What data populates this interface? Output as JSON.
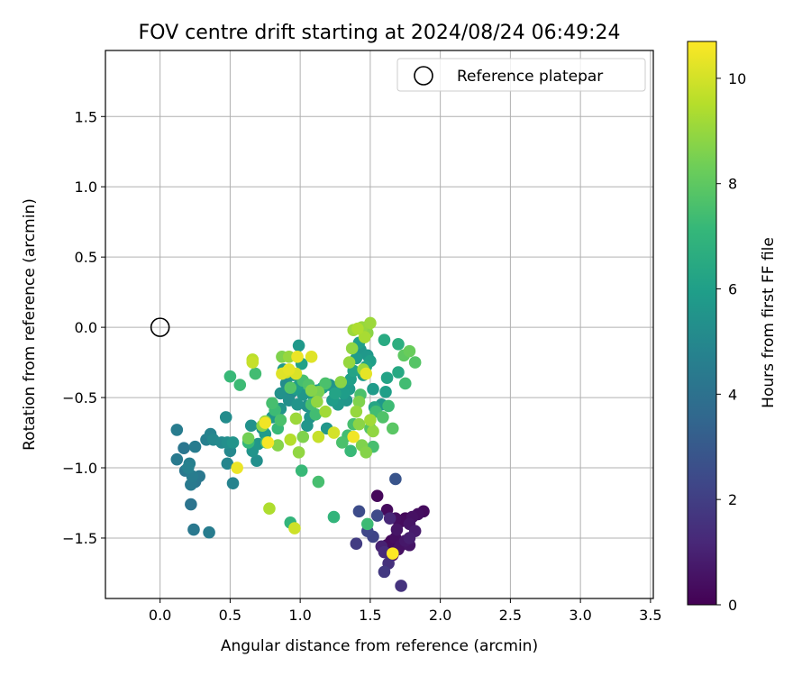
{
  "chart_data": {
    "type": "scatter",
    "title": "FOV centre drift starting at 2024/08/24 06:49:24",
    "xlabel": "Angular distance from reference (arcmin)",
    "ylabel": "Rotation from reference (arcmin)",
    "xlim": [
      -0.39,
      3.52
    ],
    "ylim": [
      -1.93,
      1.97
    ],
    "xticks": [
      0.0,
      0.5,
      1.0,
      1.5,
      2.0,
      2.5,
      3.0,
      3.5
    ],
    "xtick_labels": [
      "0.0",
      "0.5",
      "1.0",
      "1.5",
      "2.0",
      "2.5",
      "3.0",
      "3.5"
    ],
    "yticks": [
      -1.5,
      -1.0,
      -0.5,
      0.0,
      0.5,
      1.0,
      1.5
    ],
    "ytick_labels": [
      "−1.5",
      "−1.0",
      "−0.5",
      "0.0",
      "0.5",
      "1.0",
      "1.5"
    ],
    "grid": true,
    "legend": {
      "placement": "top-right",
      "entries": [
        "Reference platepar"
      ]
    },
    "reference_point": {
      "x": 0.0,
      "y": 0.0
    },
    "colorbar": {
      "label": "Hours from first FF file",
      "colormap": "viridis",
      "range": [
        0,
        10.7
      ],
      "ticks": [
        0,
        2,
        4,
        6,
        8,
        10
      ],
      "tick_labels": [
        "0",
        "2",
        "4",
        "6",
        "8",
        "10"
      ]
    },
    "colormap_stops": [
      "#440154",
      "#482878",
      "#3e4989",
      "#31688e",
      "#26828e",
      "#1f9e89",
      "#35b779",
      "#6ece58",
      "#b5de2b",
      "#fde725"
    ],
    "series": [
      {
        "points": [
          [
            1.55,
            -1.2,
            0.2
          ],
          [
            1.62,
            -1.3,
            0.3
          ],
          [
            1.68,
            -1.36,
            0.4
          ],
          [
            1.72,
            -1.38,
            0.3
          ],
          [
            1.75,
            -1.36,
            0.2
          ],
          [
            1.8,
            -1.35,
            0.5
          ],
          [
            1.84,
            -1.33,
            0.4
          ],
          [
            1.88,
            -1.31,
            0.3
          ],
          [
            1.78,
            -1.4,
            0.6
          ],
          [
            1.82,
            -1.45,
            0.8
          ],
          [
            1.78,
            -1.5,
            0.9
          ],
          [
            1.75,
            -1.52,
            0.7
          ],
          [
            1.78,
            -1.55,
            0.6
          ],
          [
            1.72,
            -1.55,
            0.5
          ],
          [
            1.68,
            -1.5,
            0.4
          ],
          [
            1.65,
            -1.52,
            0.2
          ],
          [
            1.62,
            -1.55,
            0.3
          ],
          [
            1.7,
            -1.58,
            0.5
          ],
          [
            1.66,
            -1.62,
            0.1
          ],
          [
            1.69,
            -1.44,
            0.6
          ],
          [
            1.58,
            -1.56,
            1.0
          ],
          [
            1.6,
            -1.6,
            1.3
          ],
          [
            1.63,
            -1.68,
            1.5
          ],
          [
            1.6,
            -1.74,
            1.8
          ],
          [
            1.72,
            -1.84,
            1.6
          ],
          [
            1.4,
            -1.54,
            1.9
          ],
          [
            1.52,
            -1.49,
            2.2
          ],
          [
            1.48,
            -1.45,
            2.3
          ],
          [
            1.55,
            -1.34,
            2.4
          ],
          [
            1.42,
            -1.31,
            2.5
          ],
          [
            1.68,
            -1.08,
            2.8
          ],
          [
            1.64,
            -1.36,
            1.2
          ],
          [
            0.12,
            -0.73,
            4.5
          ],
          [
            0.12,
            -0.94,
            4.4
          ],
          [
            0.17,
            -0.86,
            4.2
          ],
          [
            0.18,
            -1.02,
            4.3
          ],
          [
            0.21,
            -0.97,
            4.6
          ],
          [
            0.23,
            -1.06,
            4.5
          ],
          [
            0.22,
            -1.12,
            4.4
          ],
          [
            0.25,
            -1.1,
            4.2
          ],
          [
            0.28,
            -1.06,
            4.3
          ],
          [
            0.2,
            -1.0,
            4.7
          ],
          [
            0.25,
            -0.85,
            4.5
          ],
          [
            0.22,
            -1.26,
            4.1
          ],
          [
            0.24,
            -1.44,
            4.3
          ],
          [
            0.35,
            -1.46,
            4.5
          ],
          [
            0.33,
            -0.8,
            4.6
          ],
          [
            0.36,
            -0.76,
            4.8
          ],
          [
            0.38,
            -0.8,
            5.0
          ],
          [
            0.44,
            -0.82,
            5.1
          ],
          [
            0.47,
            -0.64,
            5.2
          ],
          [
            0.48,
            -0.82,
            5.3
          ],
          [
            0.5,
            -0.88,
            5.0
          ],
          [
            0.48,
            -0.97,
            4.9
          ],
          [
            0.52,
            -1.11,
            4.8
          ],
          [
            0.52,
            -0.82,
            5.5
          ],
          [
            0.65,
            -0.7,
            5.4
          ],
          [
            0.66,
            -0.88,
            5.5
          ],
          [
            0.69,
            -0.95,
            5.3
          ],
          [
            0.7,
            -0.83,
            5.6
          ],
          [
            0.73,
            -0.72,
            5.5
          ],
          [
            0.75,
            -0.76,
            5.8
          ],
          [
            0.8,
            -0.64,
            5.6
          ],
          [
            0.86,
            -0.47,
            5.4
          ],
          [
            0.86,
            -0.58,
            5.5
          ],
          [
            0.88,
            -0.3,
            5.7
          ],
          [
            0.9,
            -0.4,
            5.2
          ],
          [
            0.92,
            -0.52,
            5.3
          ],
          [
            0.94,
            -0.46,
            5.1
          ],
          [
            0.95,
            -0.34,
            5.6
          ],
          [
            0.97,
            -0.44,
            5.9
          ],
          [
            0.98,
            -0.55,
            5.5
          ],
          [
            0.99,
            -0.13,
            5.7
          ],
          [
            1.0,
            -0.4,
            6.0
          ],
          [
            1.01,
            -0.26,
            6.1
          ],
          [
            1.02,
            -0.48,
            5.6
          ],
          [
            1.05,
            -0.56,
            5.4
          ],
          [
            1.07,
            -0.64,
            5.5
          ],
          [
            1.1,
            -0.5,
            5.8
          ],
          [
            1.12,
            -0.45,
            5.6
          ],
          [
            1.16,
            -0.43,
            6.1
          ],
          [
            1.19,
            -0.72,
            5.6
          ],
          [
            1.21,
            -0.41,
            5.5
          ],
          [
            1.23,
            -0.52,
            5.9
          ],
          [
            1.25,
            -0.47,
            6.2
          ],
          [
            1.27,
            -0.55,
            5.7
          ],
          [
            1.29,
            -0.43,
            5.5
          ],
          [
            1.31,
            -0.47,
            5.9
          ],
          [
            1.33,
            -0.52,
            5.6
          ],
          [
            1.35,
            -0.44,
            5.8
          ],
          [
            1.36,
            -0.37,
            6.0
          ],
          [
            1.38,
            -0.31,
            6.2
          ],
          [
            1.4,
            -0.22,
            5.8
          ],
          [
            1.42,
            -0.11,
            6.0
          ],
          [
            1.43,
            -0.16,
            5.6
          ],
          [
            1.45,
            -0.34,
            5.9
          ],
          [
            1.47,
            -0.28,
            6.2
          ],
          [
            1.48,
            -0.2,
            5.7
          ],
          [
            1.5,
            -0.24,
            6.0
          ],
          [
            1.52,
            -0.44,
            5.8
          ],
          [
            1.53,
            -0.57,
            6.3
          ],
          [
            1.58,
            -0.55,
            5.7
          ],
          [
            1.61,
            -0.46,
            6.0
          ],
          [
            1.62,
            -0.36,
            6.2
          ],
          [
            1.6,
            -0.09,
            6.5
          ],
          [
            1.7,
            -0.32,
            6.4
          ],
          [
            1.7,
            -0.12,
            6.7
          ],
          [
            0.97,
            -0.43,
            5.5
          ],
          [
            1.05,
            -0.7,
            5.6
          ],
          [
            0.5,
            -0.35,
            7.2
          ],
          [
            0.57,
            -0.41,
            7.3
          ],
          [
            0.63,
            -0.82,
            7.1
          ],
          [
            0.68,
            -0.33,
            7.4
          ],
          [
            0.76,
            -0.82,
            7.6
          ],
          [
            0.8,
            -0.54,
            7.5
          ],
          [
            0.82,
            -0.59,
            7.3
          ],
          [
            0.84,
            -0.72,
            7.2
          ],
          [
            0.86,
            -0.66,
            7.6
          ],
          [
            0.93,
            -1.39,
            7.0
          ],
          [
            0.93,
            -0.43,
            7.8
          ],
          [
            1.01,
            -1.02,
            7.2
          ],
          [
            1.02,
            -0.38,
            7.5
          ],
          [
            1.06,
            -0.41,
            7.7
          ],
          [
            1.11,
            -0.62,
            7.4
          ],
          [
            1.13,
            -1.1,
            7.5
          ],
          [
            1.24,
            -1.35,
            7.0
          ],
          [
            1.3,
            -0.82,
            7.6
          ],
          [
            1.34,
            -0.77,
            7.4
          ],
          [
            1.36,
            -0.88,
            7.2
          ],
          [
            1.38,
            -0.69,
            7.5
          ],
          [
            1.43,
            -0.48,
            7.6
          ],
          [
            1.48,
            -1.4,
            7.3
          ],
          [
            1.5,
            -0.72,
            7.8
          ],
          [
            1.52,
            -0.85,
            7.5
          ],
          [
            1.54,
            -0.6,
            7.4
          ],
          [
            1.59,
            -0.64,
            7.7
          ],
          [
            1.63,
            -0.56,
            7.3
          ],
          [
            1.66,
            -0.72,
            7.9
          ],
          [
            1.74,
            -0.2,
            8.0
          ],
          [
            1.78,
            -0.17,
            8.2
          ],
          [
            1.82,
            -0.25,
            7.8
          ],
          [
            1.75,
            -0.4,
            7.4
          ],
          [
            1.18,
            -0.4,
            7.6
          ],
          [
            1.08,
            -0.55,
            7.5
          ],
          [
            0.63,
            -0.79,
            8.4
          ],
          [
            0.73,
            -0.7,
            8.8
          ],
          [
            0.75,
            -0.67,
            8.9
          ],
          [
            0.84,
            -0.84,
            8.7
          ],
          [
            0.87,
            -0.21,
            8.6
          ],
          [
            0.92,
            -0.21,
            9.0
          ],
          [
            0.97,
            -0.65,
            9.1
          ],
          [
            0.99,
            -0.89,
            8.9
          ],
          [
            1.02,
            -0.78,
            8.6
          ],
          [
            1.08,
            -0.45,
            8.7
          ],
          [
            1.13,
            -0.46,
            8.5
          ],
          [
            1.12,
            -0.53,
            8.9
          ],
          [
            1.18,
            -0.6,
            9.2
          ],
          [
            1.29,
            -0.39,
            8.8
          ],
          [
            1.35,
            -0.25,
            9.0
          ],
          [
            1.37,
            -0.15,
            8.9
          ],
          [
            1.38,
            -0.02,
            9.1
          ],
          [
            1.41,
            -0.01,
            9.4
          ],
          [
            1.44,
            0.0,
            9.0
          ],
          [
            1.46,
            -0.07,
            9.3
          ],
          [
            1.48,
            -0.04,
            8.8
          ],
          [
            1.5,
            0.03,
            9.1
          ],
          [
            1.42,
            -0.53,
            8.6
          ],
          [
            1.4,
            -0.6,
            9.0
          ],
          [
            1.42,
            -0.69,
            8.8
          ],
          [
            1.44,
            -0.84,
            8.6
          ],
          [
            1.47,
            -0.89,
            8.7
          ],
          [
            1.52,
            -0.74,
            8.9
          ],
          [
            1.5,
            -0.66,
            9.2
          ],
          [
            1.45,
            -0.3,
            9.1
          ],
          [
            0.66,
            -0.23,
            9.6
          ],
          [
            0.66,
            -0.25,
            9.8
          ],
          [
            0.78,
            -1.29,
            9.4
          ],
          [
            0.93,
            -0.8,
            9.5
          ],
          [
            0.97,
            -0.33,
            10.1
          ],
          [
            1.13,
            -0.78,
            9.8
          ],
          [
            0.87,
            -0.33,
            10.2
          ],
          [
            0.9,
            -0.32,
            10.0
          ],
          [
            0.92,
            -0.3,
            10.3
          ],
          [
            0.96,
            -1.43,
            9.9
          ],
          [
            0.98,
            -0.21,
            10.4
          ],
          [
            1.08,
            -0.21,
            10.2
          ],
          [
            1.24,
            -0.75,
            10.0
          ],
          [
            1.38,
            -0.78,
            10.5
          ],
          [
            1.47,
            -0.33,
            10.3
          ],
          [
            0.55,
            -1.0,
            10.4
          ],
          [
            0.75,
            -0.68,
            10.5
          ],
          [
            0.77,
            -0.82,
            10.6
          ],
          [
            1.66,
            -1.61,
            10.7
          ]
        ]
      }
    ]
  }
}
